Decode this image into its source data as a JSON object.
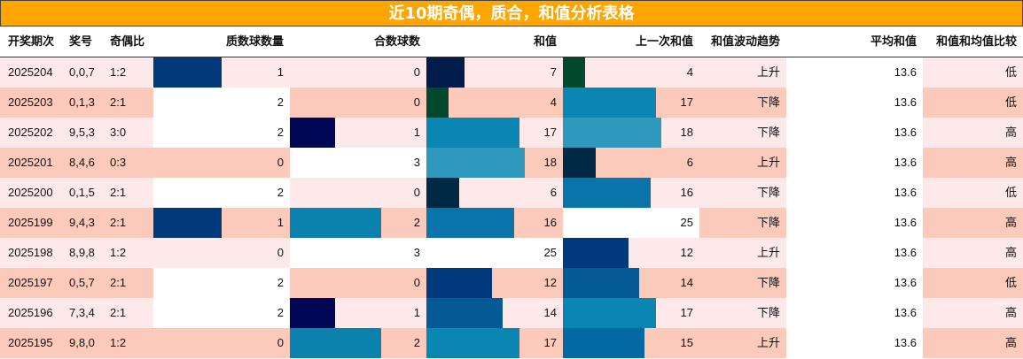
{
  "title": "近10期奇偶，质合，和值分析表格",
  "columns": [
    "开奖期次",
    "奖号",
    "奇偶比",
    "质数球数量",
    "合数球数",
    "和值",
    "上一次和值",
    "和值波动趋势",
    "平均和值",
    "和值和均值比较"
  ],
  "colors": {
    "header_bg": "#ffa500",
    "row_light": "#fde8ea",
    "row_salmon": "#fbcabb",
    "white": "#ffffff"
  },
  "rows": [
    {
      "period": "2025204",
      "numbers": "0,0,7",
      "ratio": "1:2",
      "prime": 1,
      "composite": 0,
      "sum": 7,
      "prev_sum": 4,
      "trend": "上升",
      "avg": "13.6",
      "compare": "低"
    },
    {
      "period": "2025203",
      "numbers": "0,1,3",
      "ratio": "2:1",
      "prime": 2,
      "composite": 0,
      "sum": 4,
      "prev_sum": 17,
      "trend": "下降",
      "avg": "13.6",
      "compare": "低"
    },
    {
      "period": "2025202",
      "numbers": "9,5,3",
      "ratio": "3:0",
      "prime": 2,
      "composite": 1,
      "sum": 17,
      "prev_sum": 18,
      "trend": "下降",
      "avg": "13.6",
      "compare": "高"
    },
    {
      "period": "2025201",
      "numbers": "8,4,6",
      "ratio": "0:3",
      "prime": 0,
      "composite": 3,
      "sum": 18,
      "prev_sum": 6,
      "trend": "上升",
      "avg": "13.6",
      "compare": "高"
    },
    {
      "period": "2025200",
      "numbers": "0,1,5",
      "ratio": "2:1",
      "prime": 2,
      "composite": 0,
      "sum": 6,
      "prev_sum": 16,
      "trend": "下降",
      "avg": "13.6",
      "compare": "低"
    },
    {
      "period": "2025199",
      "numbers": "9,4,3",
      "ratio": "2:1",
      "prime": 1,
      "composite": 2,
      "sum": 16,
      "prev_sum": 25,
      "trend": "下降",
      "avg": "13.6",
      "compare": "高"
    },
    {
      "period": "2025198",
      "numbers": "8,9,8",
      "ratio": "1:2",
      "prime": 0,
      "composite": 3,
      "sum": 25,
      "prev_sum": 12,
      "trend": "上升",
      "avg": "13.6",
      "compare": "高"
    },
    {
      "period": "2025197",
      "numbers": "0,5,7",
      "ratio": "2:1",
      "prime": 2,
      "composite": 0,
      "sum": 12,
      "prev_sum": 14,
      "trend": "下降",
      "avg": "13.6",
      "compare": "低"
    },
    {
      "period": "2025196",
      "numbers": "7,3,4",
      "ratio": "2:1",
      "prime": 2,
      "composite": 1,
      "sum": 14,
      "prev_sum": 17,
      "trend": "下降",
      "avg": "13.6",
      "compare": "高"
    },
    {
      "period": "2025195",
      "numbers": "9,8,0",
      "ratio": "1:2",
      "prime": 0,
      "composite": 2,
      "sum": 17,
      "prev_sum": 15,
      "trend": "上升",
      "avg": "13.6",
      "compare": "高"
    }
  ]
}
